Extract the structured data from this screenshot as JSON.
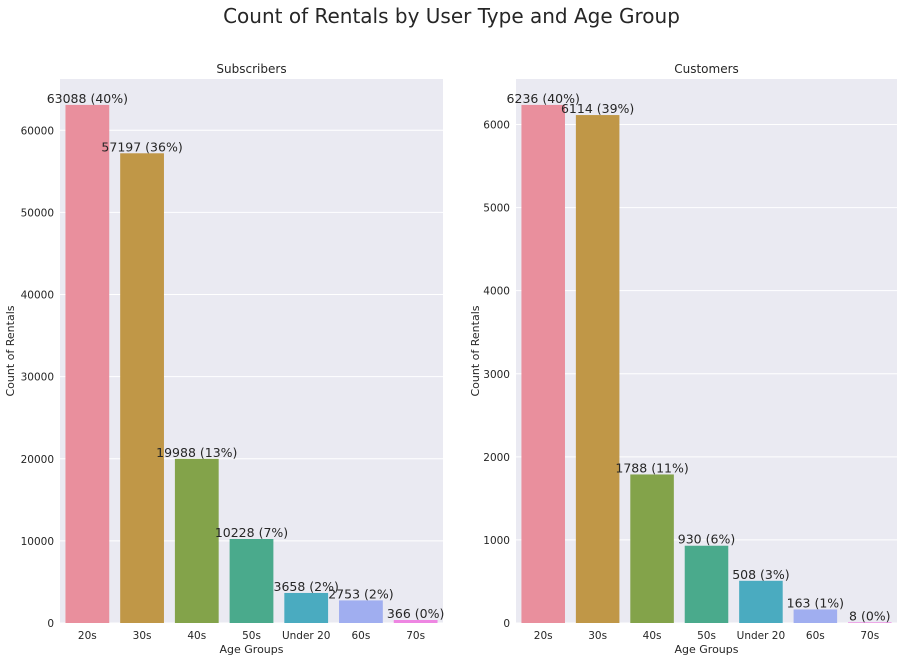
{
  "title": "Count of Rentals by User Type and Age Group",
  "colors": [
    "#e98f9d",
    "#c09747",
    "#83a34a",
    "#4aaa8c",
    "#4aabc0",
    "#a0aef0",
    "#ee86e2"
  ],
  "chart_data": [
    {
      "type": "bar",
      "title": "Subscribers",
      "xlabel": "Age Groups",
      "ylabel": "Count of Rentals",
      "categories": [
        "20s",
        "30s",
        "40s",
        "50s",
        "Under 20",
        "60s",
        "70s"
      ],
      "values": [
        63088,
        57197,
        19988,
        10228,
        3658,
        2753,
        366
      ],
      "data_labels": [
        "63088 (40%)",
        "57197 (36%)",
        "19988 (13%)",
        "10228 (7%)",
        "3658 (2%)",
        "2753 (2%)",
        "366 (0%)"
      ],
      "yticks": [
        0,
        10000,
        20000,
        30000,
        40000,
        50000,
        60000
      ],
      "ylim": [
        0,
        66243
      ],
      "grid": true
    },
    {
      "type": "bar",
      "title": "Customers",
      "xlabel": "Age Groups",
      "ylabel": "Count of Rentals",
      "categories": [
        "20s",
        "30s",
        "40s",
        "50s",
        "Under 20",
        "60s",
        "70s"
      ],
      "values": [
        6236,
        6114,
        1788,
        930,
        508,
        163,
        8
      ],
      "data_labels": [
        "6236 (40%)",
        "6114 (39%)",
        "1788 (11%)",
        "930 (6%)",
        "508 (3%)",
        "163 (1%)",
        "8 (0%)"
      ],
      "yticks": [
        0,
        1000,
        2000,
        3000,
        4000,
        5000,
        6000
      ],
      "ylim": [
        0,
        6548
      ],
      "grid": true
    }
  ]
}
